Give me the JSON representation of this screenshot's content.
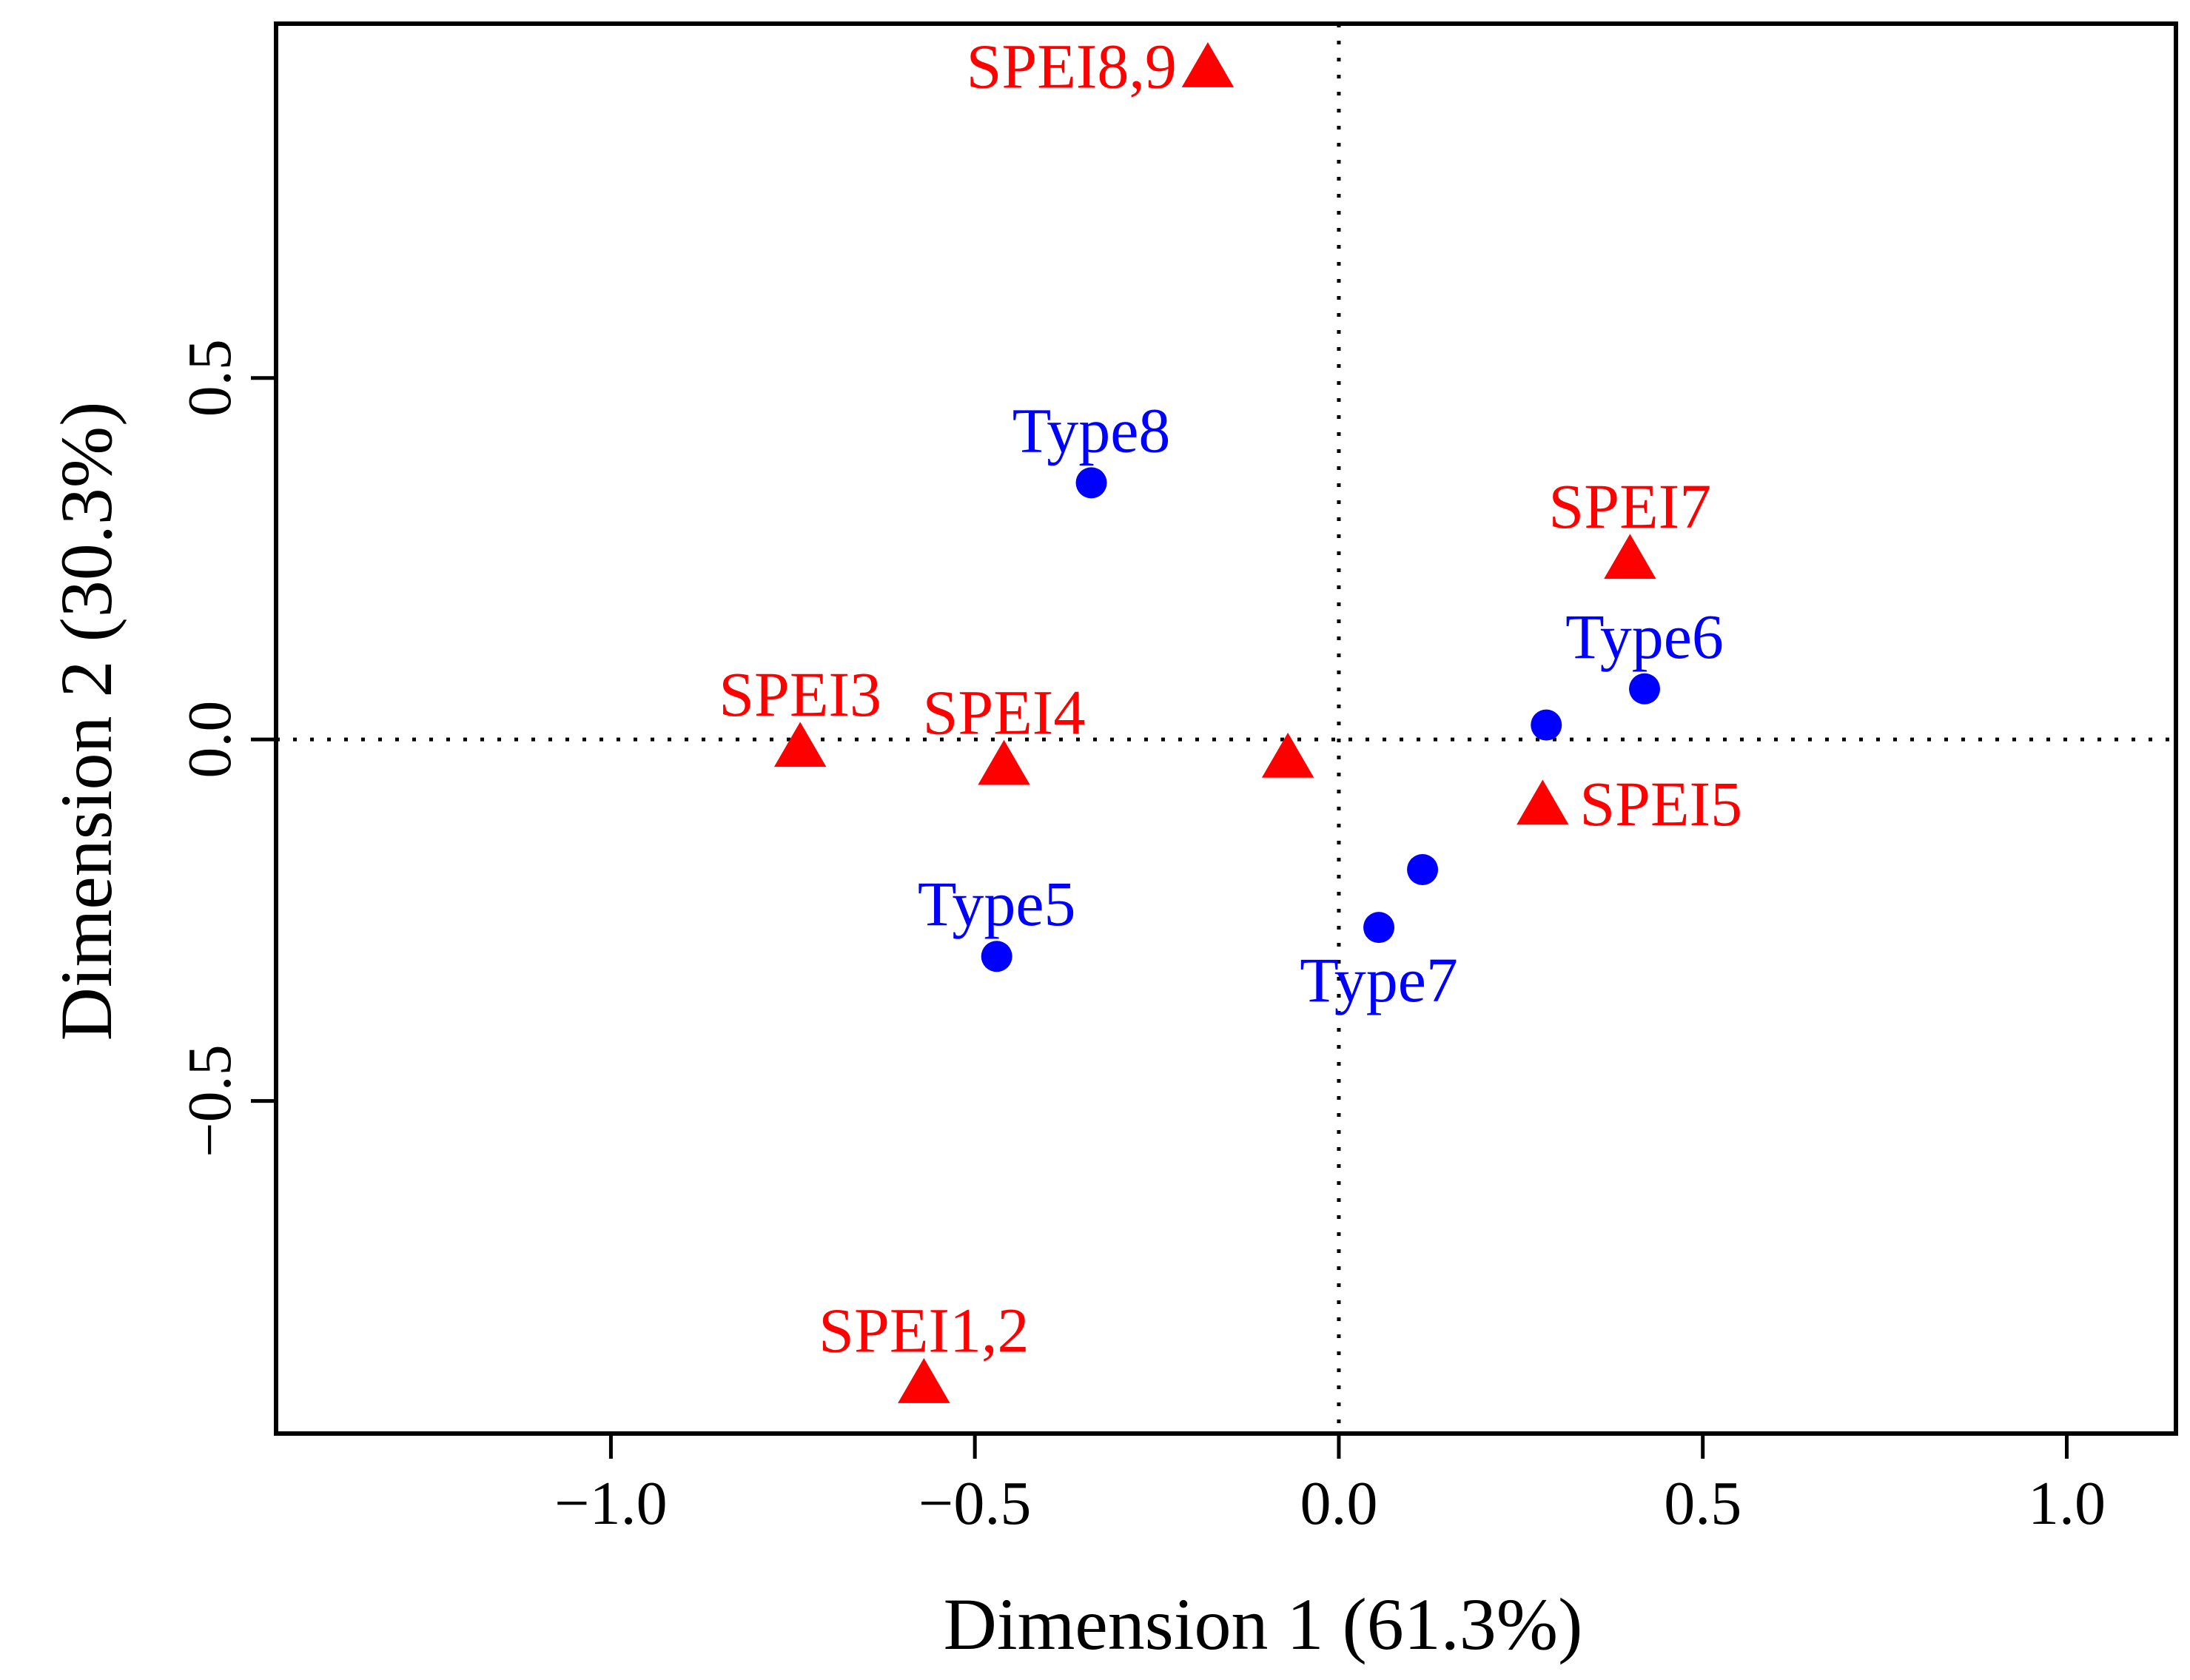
{
  "chart_data": {
    "type": "scatter",
    "xlabel": "Dimension 1 (61.3%)",
    "ylabel": "Dimension 2 (30.3%)",
    "xlim": [
      -1.46,
      1.15
    ],
    "ylim": [
      -0.96,
      0.99
    ],
    "xticks": [
      {
        "value": -1.0,
        "label": "−1.0"
      },
      {
        "value": -0.5,
        "label": "−0.5"
      },
      {
        "value": 0.0,
        "label": "0.0"
      },
      {
        "value": 0.5,
        "label": "0.5"
      },
      {
        "value": 1.0,
        "label": "1.0"
      }
    ],
    "yticks": [
      {
        "value": -0.5,
        "label": "−0.5"
      },
      {
        "value": 0.0,
        "label": "0.0"
      },
      {
        "value": 0.5,
        "label": "0.5"
      }
    ],
    "reference_lines": {
      "x": 0.0,
      "y": 0.0,
      "style": "dotted"
    },
    "series": [
      {
        "name": "SPEI",
        "marker": "triangle",
        "color": "#ff0000",
        "points": [
          {
            "label": "SPEI8,9",
            "x": -0.18,
            "y": 0.93,
            "label_side": "left"
          },
          {
            "label": "SPEI7",
            "x": 0.4,
            "y": 0.25,
            "label_side": "above"
          },
          {
            "label": "SPEI3",
            "x": -0.74,
            "y": -0.01,
            "label_side": "above"
          },
          {
            "label": "SPEI4",
            "x": -0.46,
            "y": -0.035,
            "label_side": "above"
          },
          {
            "label": "",
            "x": -0.07,
            "y": -0.025,
            "label_side": "none"
          },
          {
            "label": "SPEI5",
            "x": 0.28,
            "y": -0.09,
            "label_side": "right"
          },
          {
            "label": "SPEI1,2",
            "x": -0.57,
            "y": -0.89,
            "label_side": "above"
          }
        ]
      },
      {
        "name": "Type",
        "marker": "circle",
        "color": "#0000ff",
        "points": [
          {
            "label": "Type8",
            "x": -0.34,
            "y": 0.355,
            "label_side": "above"
          },
          {
            "label": "Type6",
            "x": 0.42,
            "y": 0.07,
            "label_side": "above"
          },
          {
            "label": "",
            "x": 0.285,
            "y": 0.02,
            "label_side": "none"
          },
          {
            "label": "",
            "x": 0.115,
            "y": -0.18,
            "label_side": "none"
          },
          {
            "label": "Type7",
            "x": 0.055,
            "y": -0.26,
            "label_side": "below"
          },
          {
            "label": "Type5",
            "x": -0.47,
            "y": -0.3,
            "label_side": "above"
          }
        ]
      }
    ]
  }
}
